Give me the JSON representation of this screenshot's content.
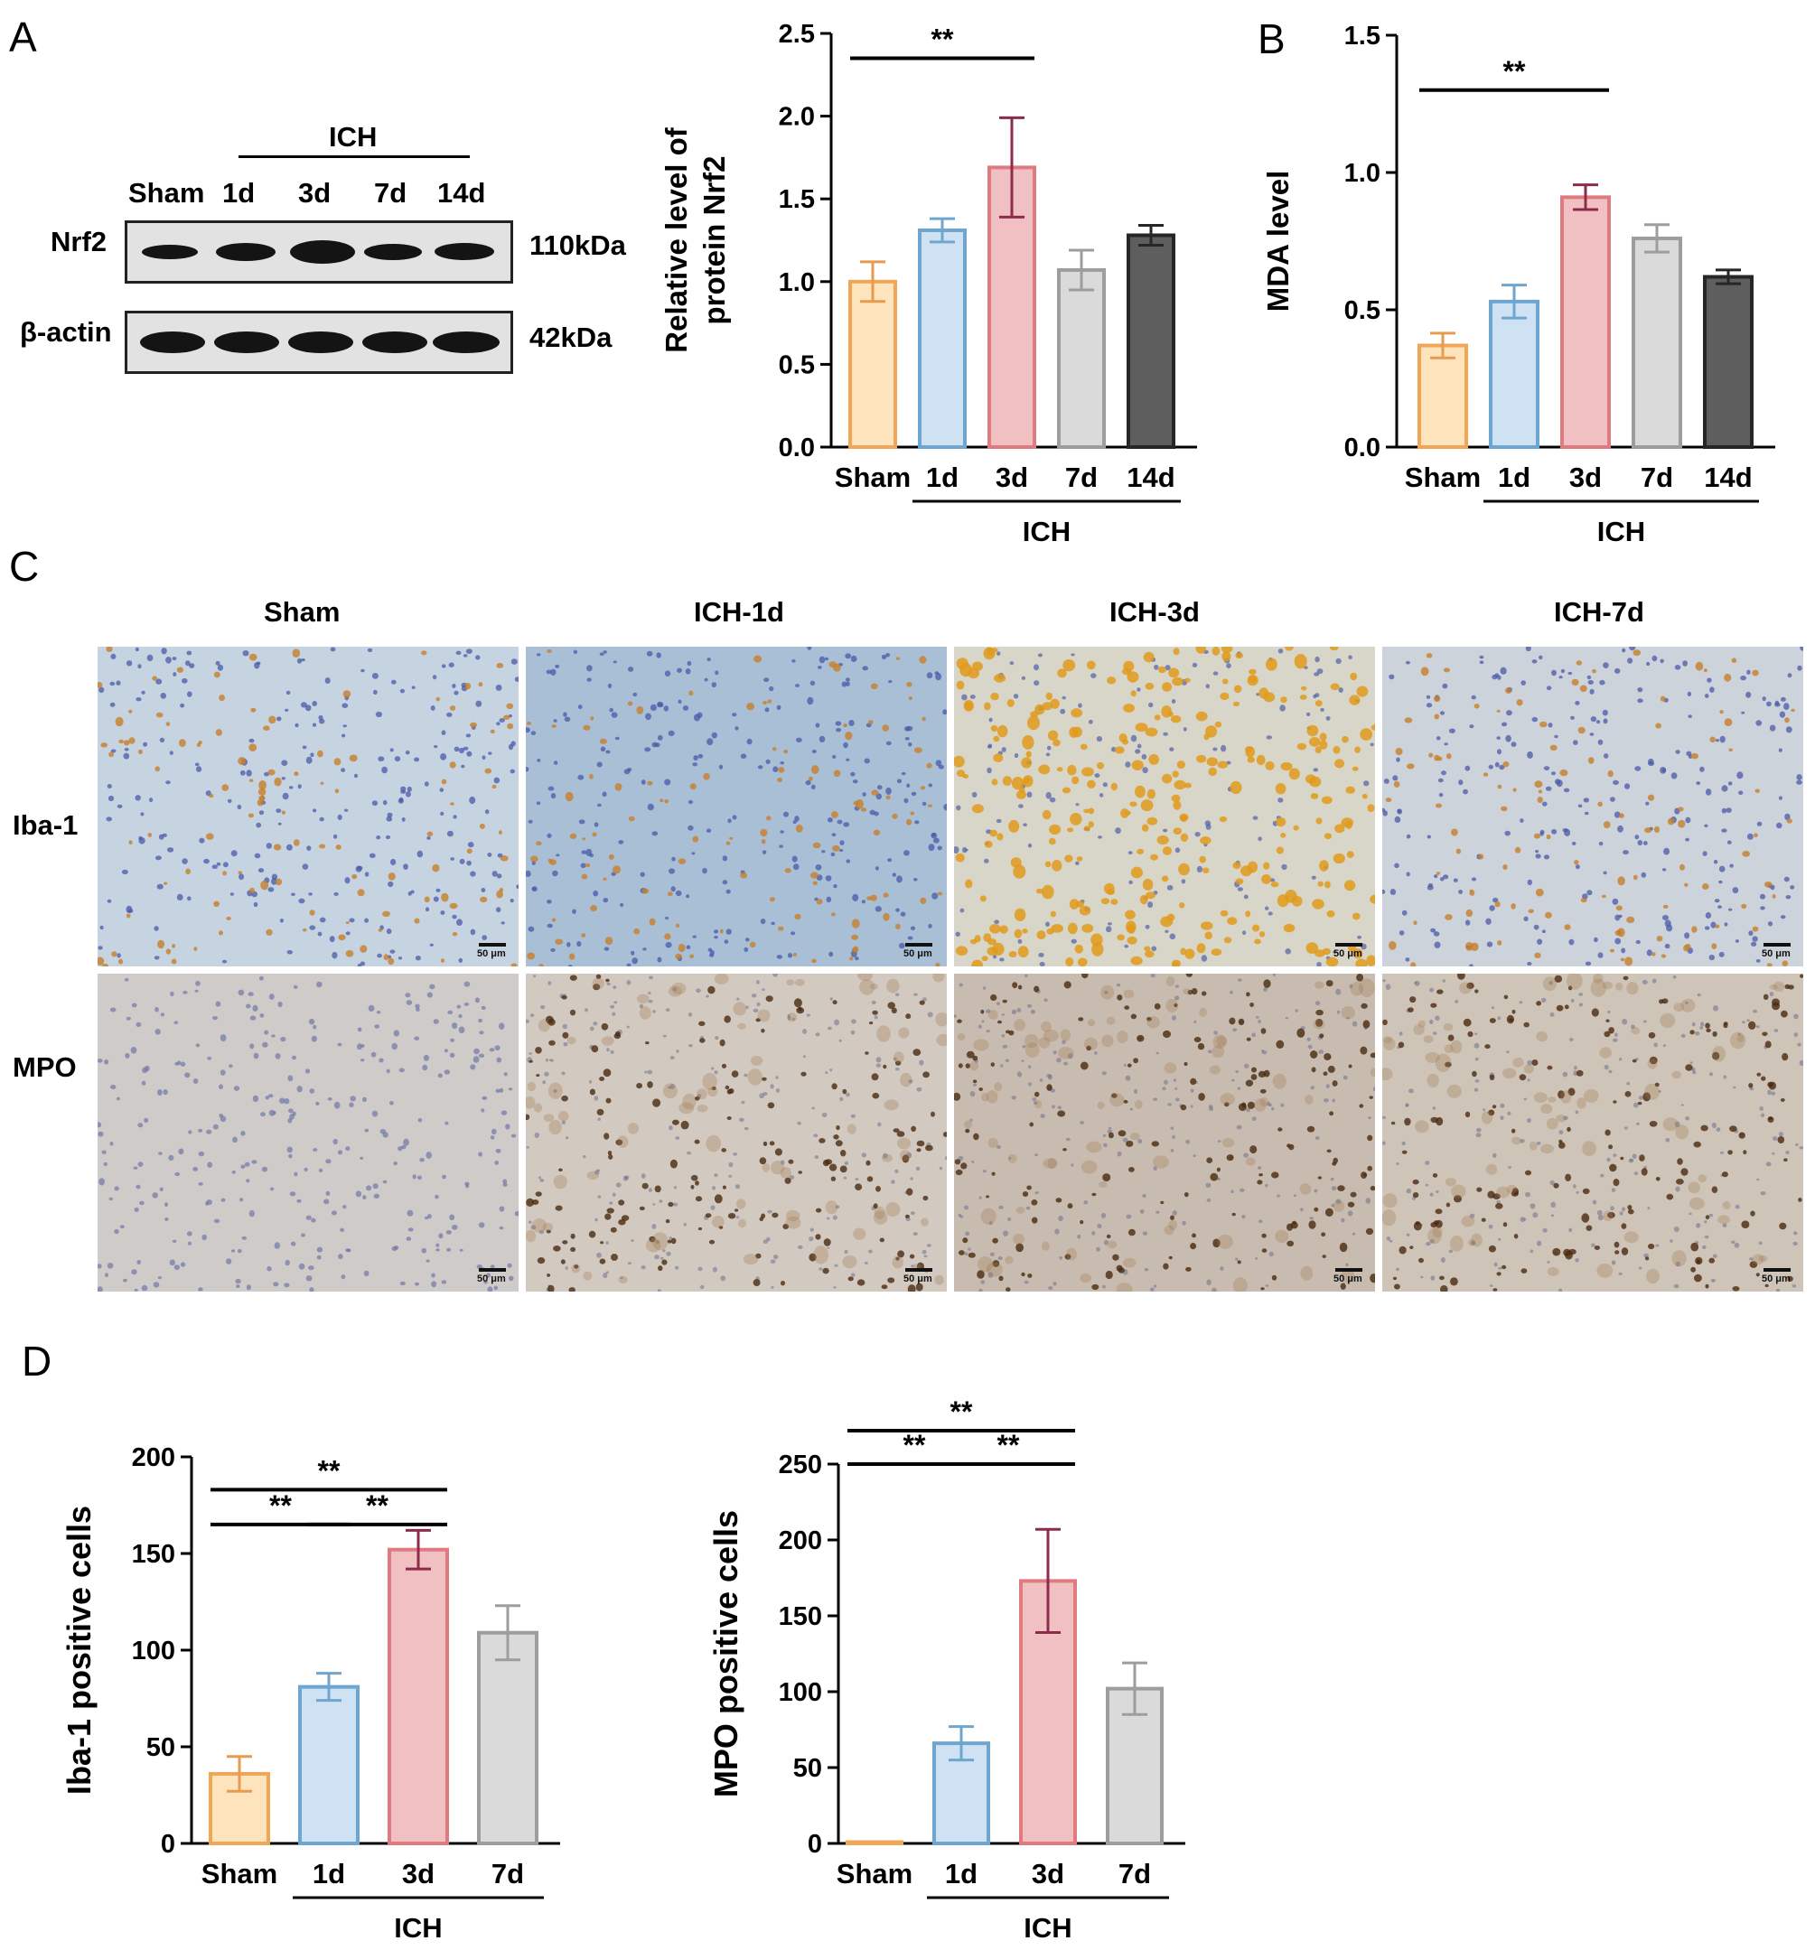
{
  "panels": {
    "A": "A",
    "B": "B",
    "C": "C",
    "D": "D"
  },
  "western": {
    "group_label": "ICH",
    "lanes": [
      "Sham",
      "1d",
      "3d",
      "7d",
      "14d"
    ],
    "rows": [
      {
        "protein": "Nrf2",
        "weight": "110kDa"
      },
      {
        "protein": "β-actin",
        "weight": "42kDa"
      }
    ]
  },
  "ihc": {
    "columns": [
      "Sham",
      "ICH-1d",
      "ICH-3d",
      "ICH-7d"
    ],
    "rows": [
      "Iba-1",
      "MPO"
    ],
    "scale_bar": "50 μm"
  },
  "chart_data": [
    {
      "id": "nrf2",
      "type": "bar",
      "categories": [
        "Sham",
        "1d",
        "3d",
        "7d",
        "14d"
      ],
      "values": [
        1.0,
        1.31,
        1.69,
        1.07,
        1.28
      ],
      "errors": [
        0.12,
        0.07,
        0.3,
        0.12,
        0.06
      ],
      "ylabel": "Relative level of\nprotein Nrf2",
      "ylim": [
        0,
        2.5
      ],
      "yticks": [
        0.0,
        0.5,
        1.0,
        1.5,
        2.0,
        2.5
      ],
      "tick_format": 1,
      "group_label": "ICH",
      "group_range": [
        1,
        4
      ],
      "significance": [
        {
          "from": 0,
          "to": 2,
          "label": "**",
          "y": 2.35
        }
      ],
      "fill_colors": [
        "#fde4bd",
        "#cfe2f3",
        "#f1c0c2",
        "#dadada",
        "#5e5e5e"
      ],
      "edge_colors": [
        "#f0a656",
        "#6fa6d0",
        "#de7a80",
        "#9d9d9d",
        "#262626"
      ],
      "error_colors": [
        "#e89a4e",
        "#6fa6d0",
        "#8e2b4a",
        "#9d9d9d",
        "#262626"
      ]
    },
    {
      "id": "mda",
      "type": "bar",
      "categories": [
        "Sham",
        "1d",
        "3d",
        "7d",
        "14d"
      ],
      "values": [
        0.37,
        0.53,
        0.91,
        0.76,
        0.62
      ],
      "errors": [
        0.045,
        0.06,
        0.045,
        0.05,
        0.025
      ],
      "ylabel": "MDA level",
      "ylim": [
        0,
        1.5
      ],
      "yticks": [
        0.0,
        0.5,
        1.0,
        1.5
      ],
      "tick_format": 1,
      "group_label": "ICH",
      "group_range": [
        1,
        4
      ],
      "significance": [
        {
          "from": 0,
          "to": 2,
          "label": "**",
          "y": 1.3
        }
      ],
      "fill_colors": [
        "#fde4bd",
        "#cfe2f3",
        "#f1c0c2",
        "#dadada",
        "#5e5e5e"
      ],
      "edge_colors": [
        "#f0a656",
        "#6fa6d0",
        "#de7a80",
        "#9d9d9d",
        "#262626"
      ],
      "error_colors": [
        "#e89a4e",
        "#6fa6d0",
        "#8e2b4a",
        "#9d9d9d",
        "#262626"
      ]
    },
    {
      "id": "iba1",
      "type": "bar",
      "categories": [
        "Sham",
        "1d",
        "3d",
        "7d"
      ],
      "values": [
        36,
        81,
        152,
        109
      ],
      "errors": [
        9,
        7,
        10,
        14
      ],
      "ylabel": "Iba-1 positive cells",
      "ylim": [
        0,
        200
      ],
      "yticks": [
        0,
        50,
        100,
        150,
        200
      ],
      "tick_format": 0,
      "group_label": "ICH",
      "group_range": [
        1,
        3
      ],
      "significance": [
        {
          "from": 0,
          "to": 2,
          "label": "**",
          "y": 183
        },
        {
          "from": 0,
          "to": 1,
          "label": "**",
          "y": 165
        },
        {
          "from": 1,
          "to": 2,
          "label": "**",
          "y": 165
        }
      ],
      "fill_colors": [
        "#fde4bd",
        "#cfe2f3",
        "#f1c0c2",
        "#dadada"
      ],
      "edge_colors": [
        "#f0a656",
        "#6fa6d0",
        "#de7a80",
        "#9d9d9d"
      ],
      "error_colors": [
        "#e89a4e",
        "#6fa6d0",
        "#8e2b4a",
        "#9d9d9d"
      ]
    },
    {
      "id": "mpo",
      "type": "bar",
      "categories": [
        "Sham",
        "1d",
        "3d",
        "7d"
      ],
      "values": [
        0,
        66,
        173,
        102
      ],
      "errors": [
        0,
        11,
        34,
        17
      ],
      "ylabel": "MPO positive cells",
      "ylim": [
        0,
        250
      ],
      "yticks": [
        0,
        50,
        100,
        150,
        200,
        250
      ],
      "tick_format": 0,
      "group_label": "ICH",
      "group_range": [
        1,
        3
      ],
      "significance": [
        {
          "from": 0,
          "to": 2,
          "label": "**",
          "y": 272
        },
        {
          "from": 0,
          "to": 1,
          "label": "**",
          "y": 250
        },
        {
          "from": 1,
          "to": 2,
          "label": "**",
          "y": 250
        }
      ],
      "fill_colors": [
        "#fde4bd",
        "#cfe2f3",
        "#f1c0c2",
        "#dadada"
      ],
      "edge_colors": [
        "#f0a656",
        "#6fa6d0",
        "#de7a80",
        "#9d9d9d"
      ],
      "error_colors": [
        "#e89a4e",
        "#6fa6d0",
        "#8e2b4a",
        "#9d9d9d"
      ]
    }
  ]
}
